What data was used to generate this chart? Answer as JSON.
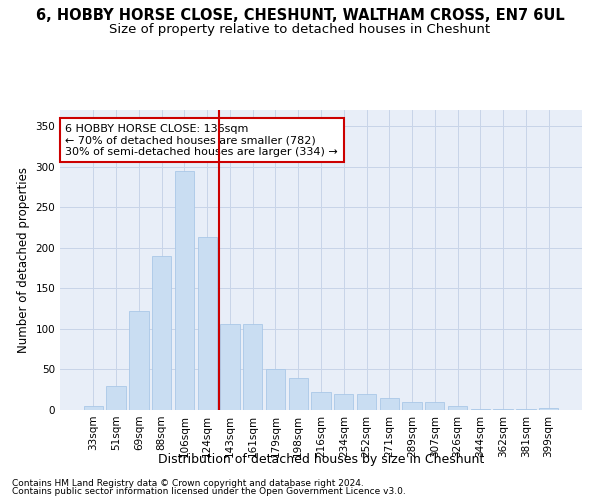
{
  "title1": "6, HOBBY HORSE CLOSE, CHESHUNT, WALTHAM CROSS, EN7 6UL",
  "title2": "Size of property relative to detached houses in Cheshunt",
  "xlabel": "Distribution of detached houses by size in Cheshunt",
  "ylabel": "Number of detached properties",
  "footnote1": "Contains HM Land Registry data © Crown copyright and database right 2024.",
  "footnote2": "Contains public sector information licensed under the Open Government Licence v3.0.",
  "categories": [
    "33sqm",
    "51sqm",
    "69sqm",
    "88sqm",
    "106sqm",
    "124sqm",
    "143sqm",
    "161sqm",
    "179sqm",
    "198sqm",
    "216sqm",
    "234sqm",
    "252sqm",
    "271sqm",
    "289sqm",
    "307sqm",
    "326sqm",
    "344sqm",
    "362sqm",
    "381sqm",
    "399sqm"
  ],
  "values": [
    5,
    29,
    122,
    190,
    295,
    213,
    106,
    106,
    50,
    40,
    22,
    20,
    20,
    15,
    10,
    10,
    5,
    1,
    1,
    1,
    3
  ],
  "bar_color": "#c9ddf2",
  "bar_edgecolor": "#aac8e8",
  "vline_color": "#cc0000",
  "vline_x": 5.5,
  "annotation_text1": "6 HOBBY HORSE CLOSE: 136sqm",
  "annotation_text2": "← 70% of detached houses are smaller (782)",
  "annotation_text3": "30% of semi-detached houses are larger (334) →",
  "annotation_box_color": "white",
  "annotation_border_color": "#cc0000",
  "ylim": [
    0,
    370
  ],
  "yticks": [
    0,
    50,
    100,
    150,
    200,
    250,
    300,
    350
  ],
  "grid_color": "#c8d4e8",
  "bg_color": "#e8eef8",
  "title1_fontsize": 10.5,
  "title2_fontsize": 9.5,
  "xlabel_fontsize": 9,
  "ylabel_fontsize": 8.5,
  "tick_fontsize": 7.5,
  "annotation_fontsize": 8,
  "footnote_fontsize": 6.5
}
